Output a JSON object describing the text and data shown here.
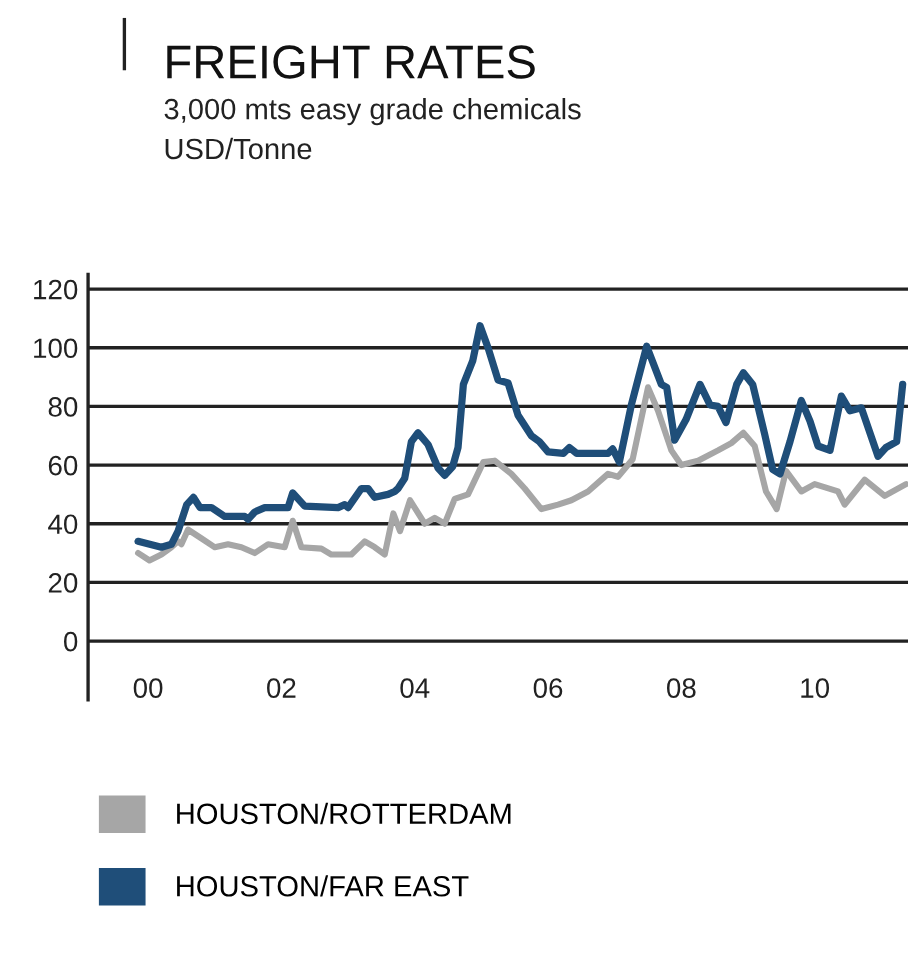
{
  "chart_data": {
    "type": "line",
    "title": "FREIGHT RATES",
    "subtitle": "3,000 mts easy grade chemicals\nUSD/Tonne",
    "xlim": [
      1999.1,
      2011.4
    ],
    "xticks": [
      {
        "value": 2000,
        "label": "00"
      },
      {
        "value": 2002,
        "label": "02"
      },
      {
        "value": 2004,
        "label": "04"
      },
      {
        "value": 2006,
        "label": "06"
      },
      {
        "value": 2008,
        "label": "08"
      },
      {
        "value": 2010,
        "label": "10"
      }
    ],
    "ylim": [
      -20,
      125
    ],
    "yticks": [
      0,
      20,
      40,
      60,
      80,
      100,
      120
    ],
    "grid": "y",
    "legend": "bottom",
    "line_style": "solid",
    "series": [
      {
        "name": "HOUSTON/ROTTERDAM",
        "color": "#a6a6a6",
        "x": [
          1999.85,
          2000.02,
          2000.2,
          2000.35,
          2000.45,
          2000.5,
          2000.6,
          2000.8,
          2001.0,
          2001.2,
          2001.4,
          2001.6,
          2001.8,
          2002.05,
          2002.17,
          2002.3,
          2002.6,
          2002.75,
          2003.05,
          2003.25,
          2003.4,
          2003.55,
          2003.68,
          2003.78,
          2003.93,
          2004.15,
          2004.3,
          2004.45,
          2004.6,
          2004.8,
          2005.03,
          2005.2,
          2005.45,
          2005.65,
          2005.9,
          2006.15,
          2006.35,
          2006.6,
          2006.9,
          2007.05,
          2007.27,
          2007.5,
          2007.65,
          2007.85,
          2008.0,
          2008.25,
          2008.55,
          2008.75,
          2008.93,
          2009.1,
          2009.27,
          2009.43,
          2009.57,
          2009.8,
          2010.0,
          2010.35,
          2010.45,
          2010.75,
          2011.05,
          2011.37
        ],
        "values": [
          30,
          27.5,
          29.5,
          32,
          34,
          33,
          38,
          35,
          32,
          33,
          32,
          30,
          33,
          32,
          41,
          32,
          31.5,
          29.5,
          29.5,
          34,
          32,
          29.5,
          43.5,
          37.5,
          48,
          40,
          42,
          40,
          48.5,
          50,
          61,
          61.5,
          57,
          52,
          45,
          46.5,
          48,
          51,
          57,
          56,
          62,
          86.5,
          78.5,
          65,
          60,
          61.5,
          65,
          67.5,
          71,
          66.5,
          51,
          45,
          58,
          51,
          53.5,
          51,
          46.5,
          55,
          49.5,
          53.5
        ]
      },
      {
        "name": "HOUSTON/FAR EAST",
        "color": "#1f4e79",
        "x": [
          1999.85,
          2000.2,
          2000.35,
          2000.45,
          2000.58,
          2000.68,
          2000.78,
          2000.95,
          2001.15,
          2001.45,
          2001.5,
          2001.6,
          2001.75,
          2002.1,
          2002.17,
          2002.35,
          2002.85,
          2002.95,
          2003.0,
          2003.2,
          2003.3,
          2003.4,
          2003.6,
          2003.7,
          2003.75,
          2003.85,
          2003.95,
          2004.05,
          2004.2,
          2004.35,
          2004.45,
          2004.57,
          2004.65,
          2004.73,
          2004.87,
          2004.98,
          2005.1,
          2005.25,
          2005.4,
          2005.55,
          2005.75,
          2005.87,
          2006.0,
          2006.23,
          2006.32,
          2006.43,
          2006.9,
          2006.97,
          2007.07,
          2007.25,
          2007.48,
          2007.7,
          2007.78,
          2007.9,
          2008.07,
          2008.28,
          2008.43,
          2008.55,
          2008.67,
          2008.83,
          2008.93,
          2009.07,
          2009.25,
          2009.37,
          2009.48,
          2009.63,
          2009.8,
          2009.93,
          2010.05,
          2010.23,
          2010.4,
          2010.53,
          2010.7,
          2010.95,
          2011.07,
          2011.23,
          2011.32
        ],
        "values": [
          34,
          32,
          33,
          37.5,
          46.5,
          49,
          45.5,
          45.5,
          42.5,
          42.5,
          41.5,
          44,
          45.5,
          45.5,
          50.5,
          46,
          45.5,
          46.5,
          45.5,
          52,
          52,
          49,
          50,
          51,
          52,
          55.5,
          68,
          71,
          67,
          59,
          56.5,
          59.5,
          66,
          87.5,
          95.5,
          107.5,
          100,
          89,
          88,
          77,
          70,
          68,
          64.5,
          64,
          66,
          64,
          64,
          65.5,
          61,
          80.5,
          100.5,
          87.5,
          86.5,
          68.5,
          75.5,
          87.5,
          80.5,
          80,
          74.5,
          87.5,
          91.5,
          87.5,
          70.5,
          58.5,
          57,
          68,
          82,
          75,
          66.5,
          65,
          83.5,
          78.5,
          79.5,
          63,
          66,
          68,
          87.5
        ]
      }
    ]
  }
}
